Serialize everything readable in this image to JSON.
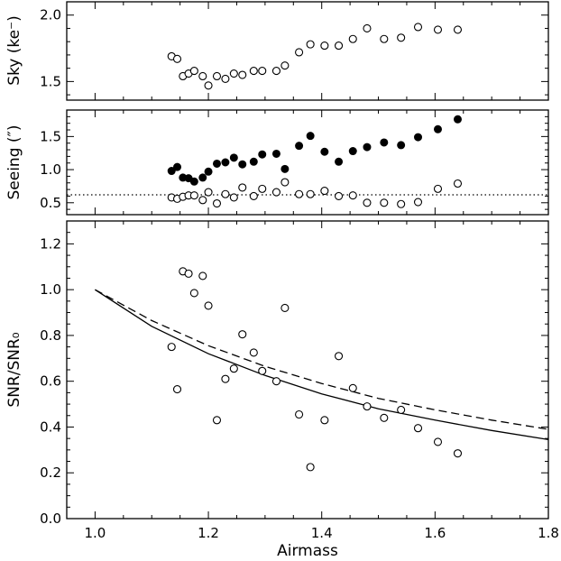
{
  "chart_data": [
    {
      "type": "scatter",
      "ylabel": "Sky (ke⁻)",
      "xlim": [
        0.95,
        1.8
      ],
      "ylim": [
        1.36,
        2.1
      ],
      "yticks": [
        "1.5",
        "2.0"
      ],
      "series": [
        {
          "style": "open-circle",
          "x": [
            1.135,
            1.145,
            1.155,
            1.165,
            1.175,
            1.19,
            1.2,
            1.215,
            1.23,
            1.245,
            1.26,
            1.28,
            1.295,
            1.32,
            1.335,
            1.36,
            1.38,
            1.405,
            1.43,
            1.455,
            1.48,
            1.51,
            1.54,
            1.57,
            1.605,
            1.64
          ],
          "y": [
            1.69,
            1.67,
            1.54,
            1.56,
            1.58,
            1.54,
            1.47,
            1.54,
            1.52,
            1.56,
            1.55,
            1.58,
            1.58,
            1.58,
            1.62,
            1.72,
            1.78,
            1.77,
            1.77,
            1.82,
            1.9,
            1.82,
            1.83,
            1.91,
            1.89,
            1.89
          ]
        }
      ]
    },
    {
      "type": "scatter",
      "ylabel": "Seeing (″)",
      "xlim": [
        0.95,
        1.8
      ],
      "ylim": [
        0.32,
        1.9
      ],
      "yticks": [
        "0.5",
        "1.0",
        "1.5"
      ],
      "reference_line": {
        "y": 0.62,
        "style": "dotted"
      },
      "series": [
        {
          "style": "filled-circle",
          "x": [
            1.135,
            1.145,
            1.155,
            1.165,
            1.175,
            1.19,
            1.2,
            1.215,
            1.23,
            1.245,
            1.26,
            1.28,
            1.295,
            1.32,
            1.335,
            1.36,
            1.38,
            1.405,
            1.43,
            1.455,
            1.48,
            1.51,
            1.54,
            1.57,
            1.605,
            1.64
          ],
          "y": [
            0.98,
            1.04,
            0.88,
            0.87,
            0.82,
            0.88,
            0.97,
            1.09,
            1.11,
            1.18,
            1.08,
            1.12,
            1.23,
            1.24,
            1.01,
            1.36,
            1.51,
            1.27,
            1.12,
            1.28,
            1.34,
            1.41,
            1.37,
            1.49,
            1.61,
            1.76
          ]
        },
        {
          "style": "open-circle",
          "x": [
            1.135,
            1.145,
            1.155,
            1.165,
            1.175,
            1.19,
            1.2,
            1.215,
            1.23,
            1.245,
            1.26,
            1.28,
            1.295,
            1.32,
            1.335,
            1.36,
            1.38,
            1.405,
            1.43,
            1.455,
            1.48,
            1.51,
            1.54,
            1.57,
            1.605,
            1.64
          ],
          "y": [
            0.58,
            0.56,
            0.59,
            0.61,
            0.61,
            0.54,
            0.66,
            0.49,
            0.63,
            0.58,
            0.73,
            0.6,
            0.71,
            0.66,
            0.81,
            0.63,
            0.63,
            0.68,
            0.6,
            0.61,
            0.5,
            0.5,
            0.48,
            0.51,
            0.71,
            0.79
          ]
        }
      ]
    },
    {
      "type": "scatter",
      "ylabel": "SNR/SNR₀",
      "xlabel": "Airmass",
      "xlim": [
        0.95,
        1.8
      ],
      "ylim": [
        0.0,
        1.3
      ],
      "xticks": [
        "1.0",
        "1.2",
        "1.4",
        "1.6",
        "1.8"
      ],
      "yticks": [
        "0.0",
        "0.2",
        "0.4",
        "0.6",
        "0.8",
        "1.0",
        "1.2"
      ],
      "series": [
        {
          "style": "open-circle",
          "x": [
            1.135,
            1.145,
            1.155,
            1.165,
            1.175,
            1.19,
            1.2,
            1.215,
            1.23,
            1.245,
            1.26,
            1.28,
            1.295,
            1.32,
            1.335,
            1.36,
            1.38,
            1.405,
            1.43,
            1.455,
            1.48,
            1.51,
            1.54,
            1.57,
            1.605,
            1.64
          ],
          "y": [
            0.75,
            0.565,
            1.08,
            1.07,
            0.985,
            1.06,
            0.93,
            0.43,
            0.61,
            0.655,
            0.805,
            0.725,
            0.645,
            0.6,
            0.92,
            0.455,
            0.225,
            0.43,
            0.71,
            0.57,
            0.49,
            0.44,
            0.475,
            0.395,
            0.335,
            0.285
          ]
        }
      ],
      "curves": [
        {
          "style": "solid",
          "x": [
            1.0,
            1.1,
            1.2,
            1.3,
            1.4,
            1.5,
            1.6,
            1.7,
            1.8
          ],
          "y": [
            1.0,
            0.84,
            0.72,
            0.625,
            0.545,
            0.48,
            0.43,
            0.385,
            0.345
          ]
        },
        {
          "style": "dashed",
          "x": [
            1.0,
            1.1,
            1.2,
            1.3,
            1.4,
            1.5,
            1.6,
            1.7,
            1.8
          ],
          "y": [
            1.0,
            0.865,
            0.755,
            0.665,
            0.59,
            0.525,
            0.475,
            0.43,
            0.39
          ]
        }
      ]
    }
  ]
}
